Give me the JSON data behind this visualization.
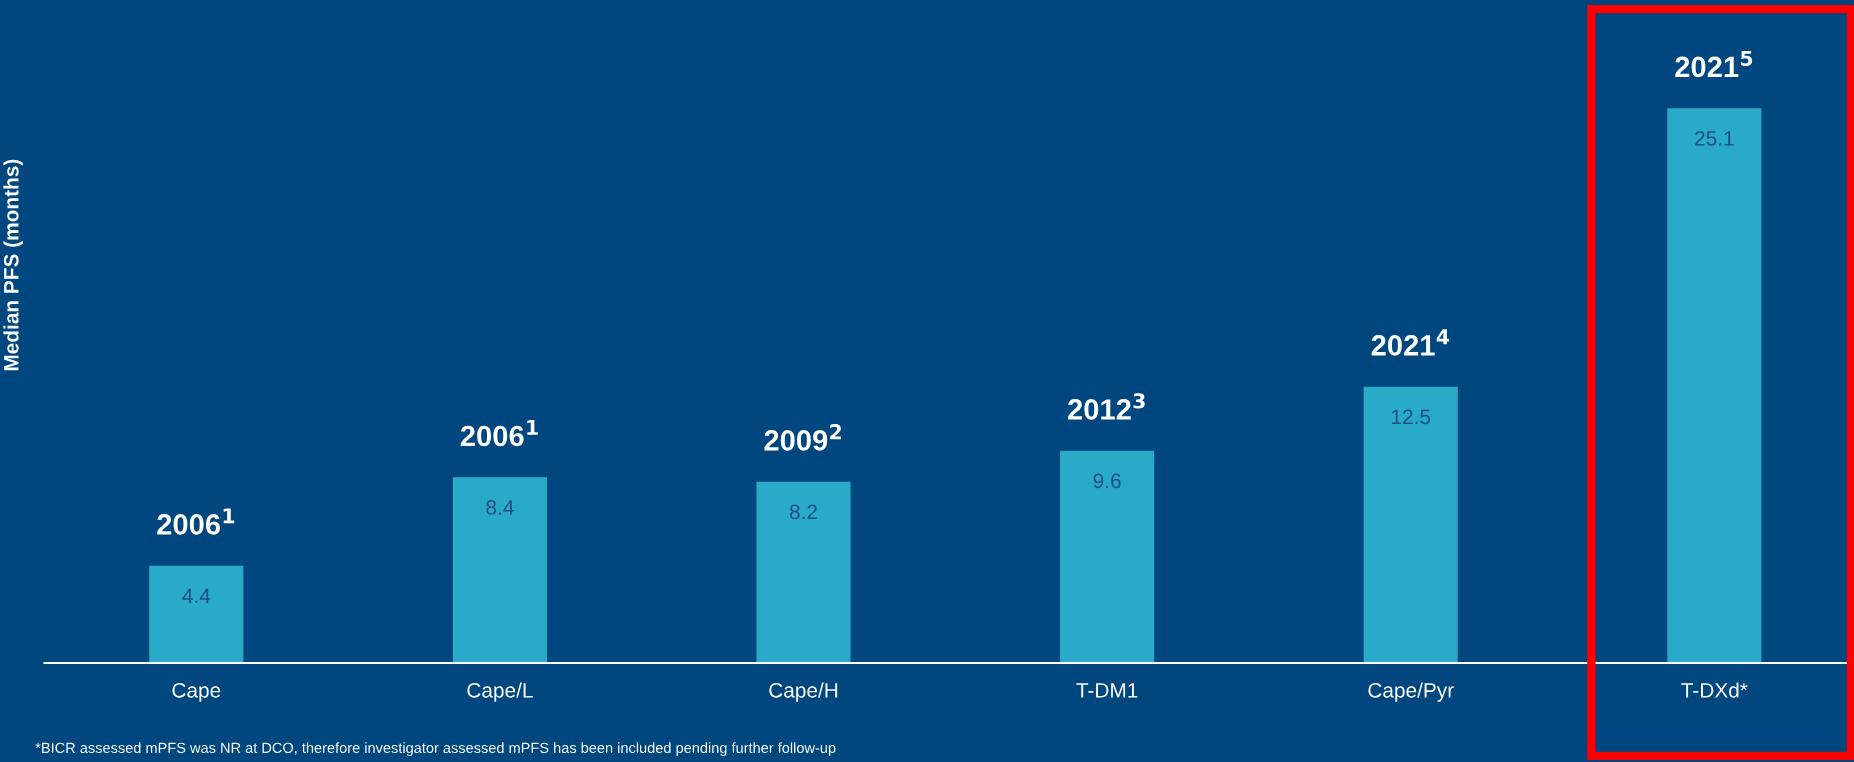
{
  "chart_data": {
    "type": "bar",
    "ylabel": "Median PFS (months)",
    "categories": [
      "Cape",
      "Cape/L",
      "Cape/H",
      "T-DM1",
      "Cape/Pyr",
      "T-DXd*"
    ],
    "values": [
      4.4,
      8.4,
      8.2,
      9.6,
      12.5,
      25.1
    ],
    "color": "#29abc8",
    "data_labels": true,
    "grid": false,
    "legend": false,
    "annotations": [
      {
        "text": "2006$^{1}$",
        "x": "Cape",
        "y": 4.4
      },
      {
        "text": "2006$^{1}$",
        "x": "Cape/L",
        "y": 8.4
      },
      {
        "text": "2009$^{2}$",
        "x": "Cape/H",
        "y": 8.2
      },
      {
        "text": "2012$^{3}$",
        "x": "T-DM1",
        "y": 9.6
      },
      {
        "text": "2021$^{4}$",
        "x": "Cape/Pyr",
        "y": 12.5
      },
      {
        "text": "2021$^{5}$",
        "x": "T-DXd*",
        "y": 25.1
      },
      "*BICR assessed mPFS was NR at DCO, therefore investigator assessed mPFS has been included pending further follow-up"
    ]
  }
}
